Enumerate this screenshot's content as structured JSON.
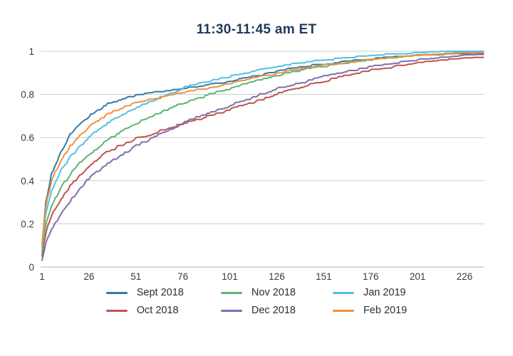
{
  "title": "11:30-11:45 am ET",
  "colors": {
    "title": "#1e3a5c",
    "grid": "#cccccc",
    "axis": "#b3b3b3",
    "tick_text": "#3b3b3b",
    "legend_text": "#2e2e2e"
  },
  "chart_data": {
    "type": "line",
    "title": "11:30-11:45 am ET",
    "xlabel": "",
    "ylabel": "",
    "xlim": [
      1,
      236
    ],
    "ylim": [
      0,
      1
    ],
    "grid": "horizontal",
    "legend_position": "bottom",
    "x_ticks": [
      1,
      26,
      51,
      76,
      101,
      126,
      151,
      176,
      201,
      226
    ],
    "y_ticks": [
      0,
      0.2,
      0.4,
      0.6,
      0.8,
      1
    ],
    "y_tick_labels": [
      "0",
      "0.2",
      "0.4",
      "0.6",
      "0.8",
      "1"
    ],
    "anchor_x": [
      1,
      3,
      6,
      11,
      16,
      21,
      26,
      36,
      51,
      76,
      101,
      126,
      151,
      176,
      201,
      226,
      236
    ],
    "series": [
      {
        "name": "Sept 2018",
        "color": "#3679a6",
        "values": [
          0.1,
          0.3,
          0.43,
          0.53,
          0.615,
          0.66,
          0.7,
          0.755,
          0.795,
          0.825,
          0.858,
          0.908,
          0.94,
          0.963,
          0.978,
          0.987,
          0.988
        ]
      },
      {
        "name": "Oct 2018",
        "color": "#bf544e",
        "values": [
          0.055,
          0.16,
          0.24,
          0.315,
          0.375,
          0.425,
          0.465,
          0.535,
          0.595,
          0.662,
          0.728,
          0.8,
          0.862,
          0.91,
          0.944,
          0.966,
          0.97
        ]
      },
      {
        "name": "Nov 2018",
        "color": "#5bb377",
        "values": [
          0.07,
          0.2,
          0.285,
          0.365,
          0.43,
          0.48,
          0.52,
          0.59,
          0.665,
          0.76,
          0.828,
          0.888,
          0.93,
          0.958,
          0.978,
          0.991,
          0.994
        ]
      },
      {
        "name": "Dec 2018",
        "color": "#7e6fae",
        "values": [
          0.03,
          0.115,
          0.175,
          0.245,
          0.305,
          0.36,
          0.41,
          0.48,
          0.56,
          0.668,
          0.748,
          0.825,
          0.882,
          0.928,
          0.958,
          0.978,
          0.982
        ]
      },
      {
        "name": "Jan 2019",
        "color": "#55bfe1",
        "values": [
          0.085,
          0.25,
          0.35,
          0.445,
          0.51,
          0.555,
          0.6,
          0.668,
          0.738,
          0.83,
          0.882,
          0.928,
          0.958,
          0.978,
          0.992,
          0.998,
          1.0
        ]
      },
      {
        "name": "Feb 2019",
        "color": "#f0913e",
        "values": [
          0.095,
          0.28,
          0.4,
          0.495,
          0.56,
          0.61,
          0.648,
          0.708,
          0.762,
          0.805,
          0.848,
          0.898,
          0.933,
          0.96,
          0.977,
          0.988,
          0.991
        ]
      }
    ]
  }
}
